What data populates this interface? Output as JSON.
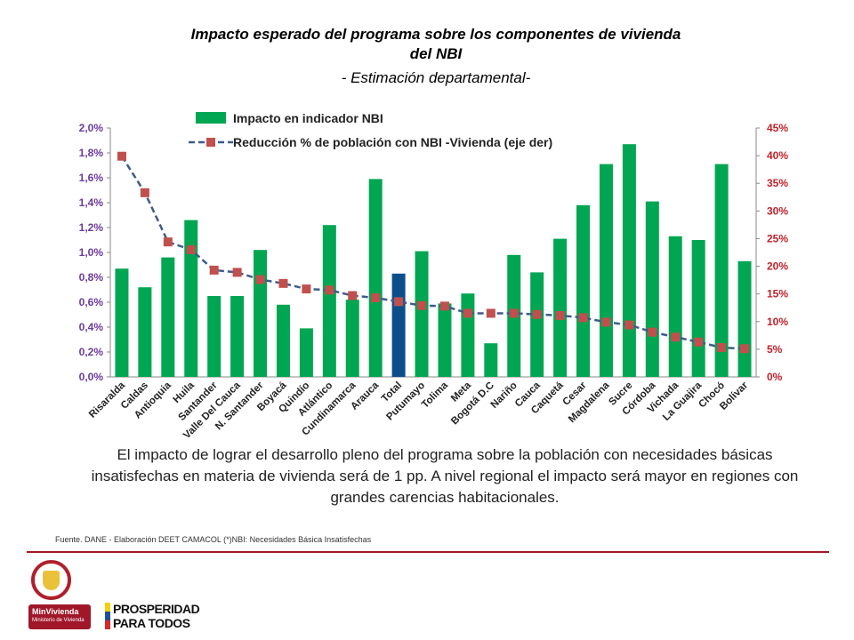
{
  "header": {
    "title_line1": "Impacto esperado del programa sobre los componentes de vivienda",
    "title_line2": "del NBI",
    "subtitle": "- Estimación departamental-"
  },
  "chart_data": {
    "type": "bar",
    "categories": [
      "Risaralda",
      "Caldas",
      "Antioquia",
      "Huila",
      "Santander",
      "Valle Del Cauca",
      "N. Santander",
      "Boyacá",
      "Quindío",
      "Atlántico",
      "Cundinamarca",
      "Arauca",
      "Total",
      "Putumayo",
      "Tolima",
      "Meta",
      "Bogotá D.C",
      "Nariño",
      "Cauca",
      "Caquetá",
      "Cesar",
      "Magdalena",
      "Sucre",
      "Córdoba",
      "Vichada",
      "La Guajira",
      "Chocó",
      "Bolívar"
    ],
    "series": [
      {
        "name": "Impacto en indicador NBI",
        "type": "bar",
        "axis": "left",
        "color": "#00a651",
        "highlight": {
          "category": "Total",
          "color": "#0b4f8a"
        },
        "values": [
          0.87,
          0.72,
          0.96,
          1.26,
          0.65,
          0.65,
          1.02,
          0.58,
          0.39,
          1.22,
          0.62,
          1.59,
          0.83,
          1.01,
          0.59,
          0.67,
          0.27,
          0.98,
          0.84,
          1.11,
          1.38,
          1.71,
          1.87,
          1.41,
          1.13,
          1.1,
          1.71,
          0.93
        ]
      },
      {
        "name": "Reducción % de población con NBI -Vivienda (eje der)",
        "type": "line",
        "axis": "right",
        "color": "#c0504d",
        "line_color": "#3e5c8a",
        "line_style": "dashed",
        "marker": "square",
        "values": [
          39.9,
          33.3,
          24.4,
          23.0,
          19.3,
          18.9,
          17.6,
          16.9,
          15.9,
          15.7,
          14.7,
          14.3,
          13.6,
          12.9,
          12.8,
          11.5,
          11.5,
          11.5,
          11.3,
          11.1,
          10.7,
          9.9,
          9.4,
          8.1,
          7.2,
          6.3,
          5.3,
          5.1
        ]
      }
    ],
    "y_left": {
      "min": 0,
      "max": 2.0,
      "ticks": [
        "0,0%",
        "0,2%",
        "0,4%",
        "0,6%",
        "0,8%",
        "1,0%",
        "1,2%",
        "1,4%",
        "1,6%",
        "1,8%",
        "2,0%"
      ],
      "color": "#6b3aa0"
    },
    "y_right": {
      "min": 0,
      "max": 45,
      "ticks": [
        "0%",
        "5%",
        "10%",
        "15%",
        "20%",
        "25%",
        "30%",
        "35%",
        "40%",
        "45%"
      ],
      "color": "#c0222a"
    },
    "legend": {
      "position": "top-center",
      "items": [
        "Impacto en indicador NBI",
        "Reducción % de población con NBI -Vivienda (eje der)"
      ]
    },
    "grid": false
  },
  "description": "El impacto de lograr el desarrollo pleno del programa sobre la población con necesidades básicas insatisfechas  en materia de vivienda será de 1 pp. A nivel  regional el impacto será mayor en regiones con grandes carencias habitacionales.",
  "source": "Fuente. DANE  - Elaboración DEET CAMACOL  (*)NBI: Necesidades Básica Insatisfechas",
  "footer": {
    "ministry_name": "MinVivienda",
    "ministry_sub": "Ministerio de Vivienda",
    "program_line1": "PROSPERIDAD",
    "program_line2": "PARA TODOS"
  }
}
